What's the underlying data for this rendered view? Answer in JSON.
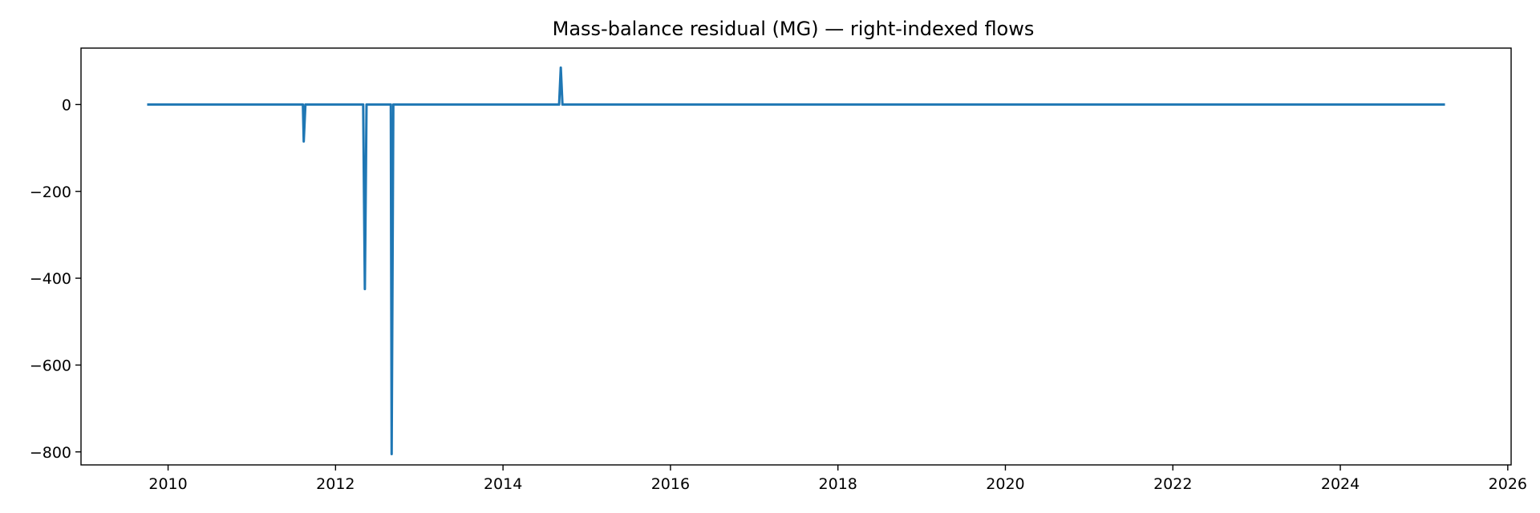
{
  "chart_data": {
    "type": "line",
    "title": "Mass-balance residual (MG) — right-indexed flows",
    "xlabel": "",
    "ylabel": "",
    "xlim": [
      2008.96,
      2026.04
    ],
    "ylim": [
      -830,
      130
    ],
    "grid": false,
    "legend": "none",
    "x_ticks": [
      2010,
      2012,
      2014,
      2016,
      2018,
      2020,
      2022,
      2024,
      2026
    ],
    "x_tick_labels": [
      "2010",
      "2012",
      "2014",
      "2016",
      "2018",
      "2020",
      "2022",
      "2024",
      "2026"
    ],
    "y_ticks": [
      0,
      -200,
      -400,
      -600,
      -800
    ],
    "y_tick_labels": [
      "0",
      "−200",
      "−400",
      "−600",
      "−800"
    ],
    "series": [
      {
        "color": "#1f77b4",
        "points": [
          [
            2009.75,
            0
          ],
          [
            2011.61,
            0
          ],
          [
            2011.62,
            -85
          ],
          [
            2011.64,
            0
          ],
          [
            2012.33,
            0
          ],
          [
            2012.35,
            -425
          ],
          [
            2012.37,
            0
          ],
          [
            2012.66,
            0
          ],
          [
            2012.67,
            -805
          ],
          [
            2012.69,
            0
          ],
          [
            2014.67,
            0
          ],
          [
            2014.69,
            85
          ],
          [
            2014.71,
            0
          ],
          [
            2025.25,
            0
          ]
        ]
      }
    ]
  }
}
